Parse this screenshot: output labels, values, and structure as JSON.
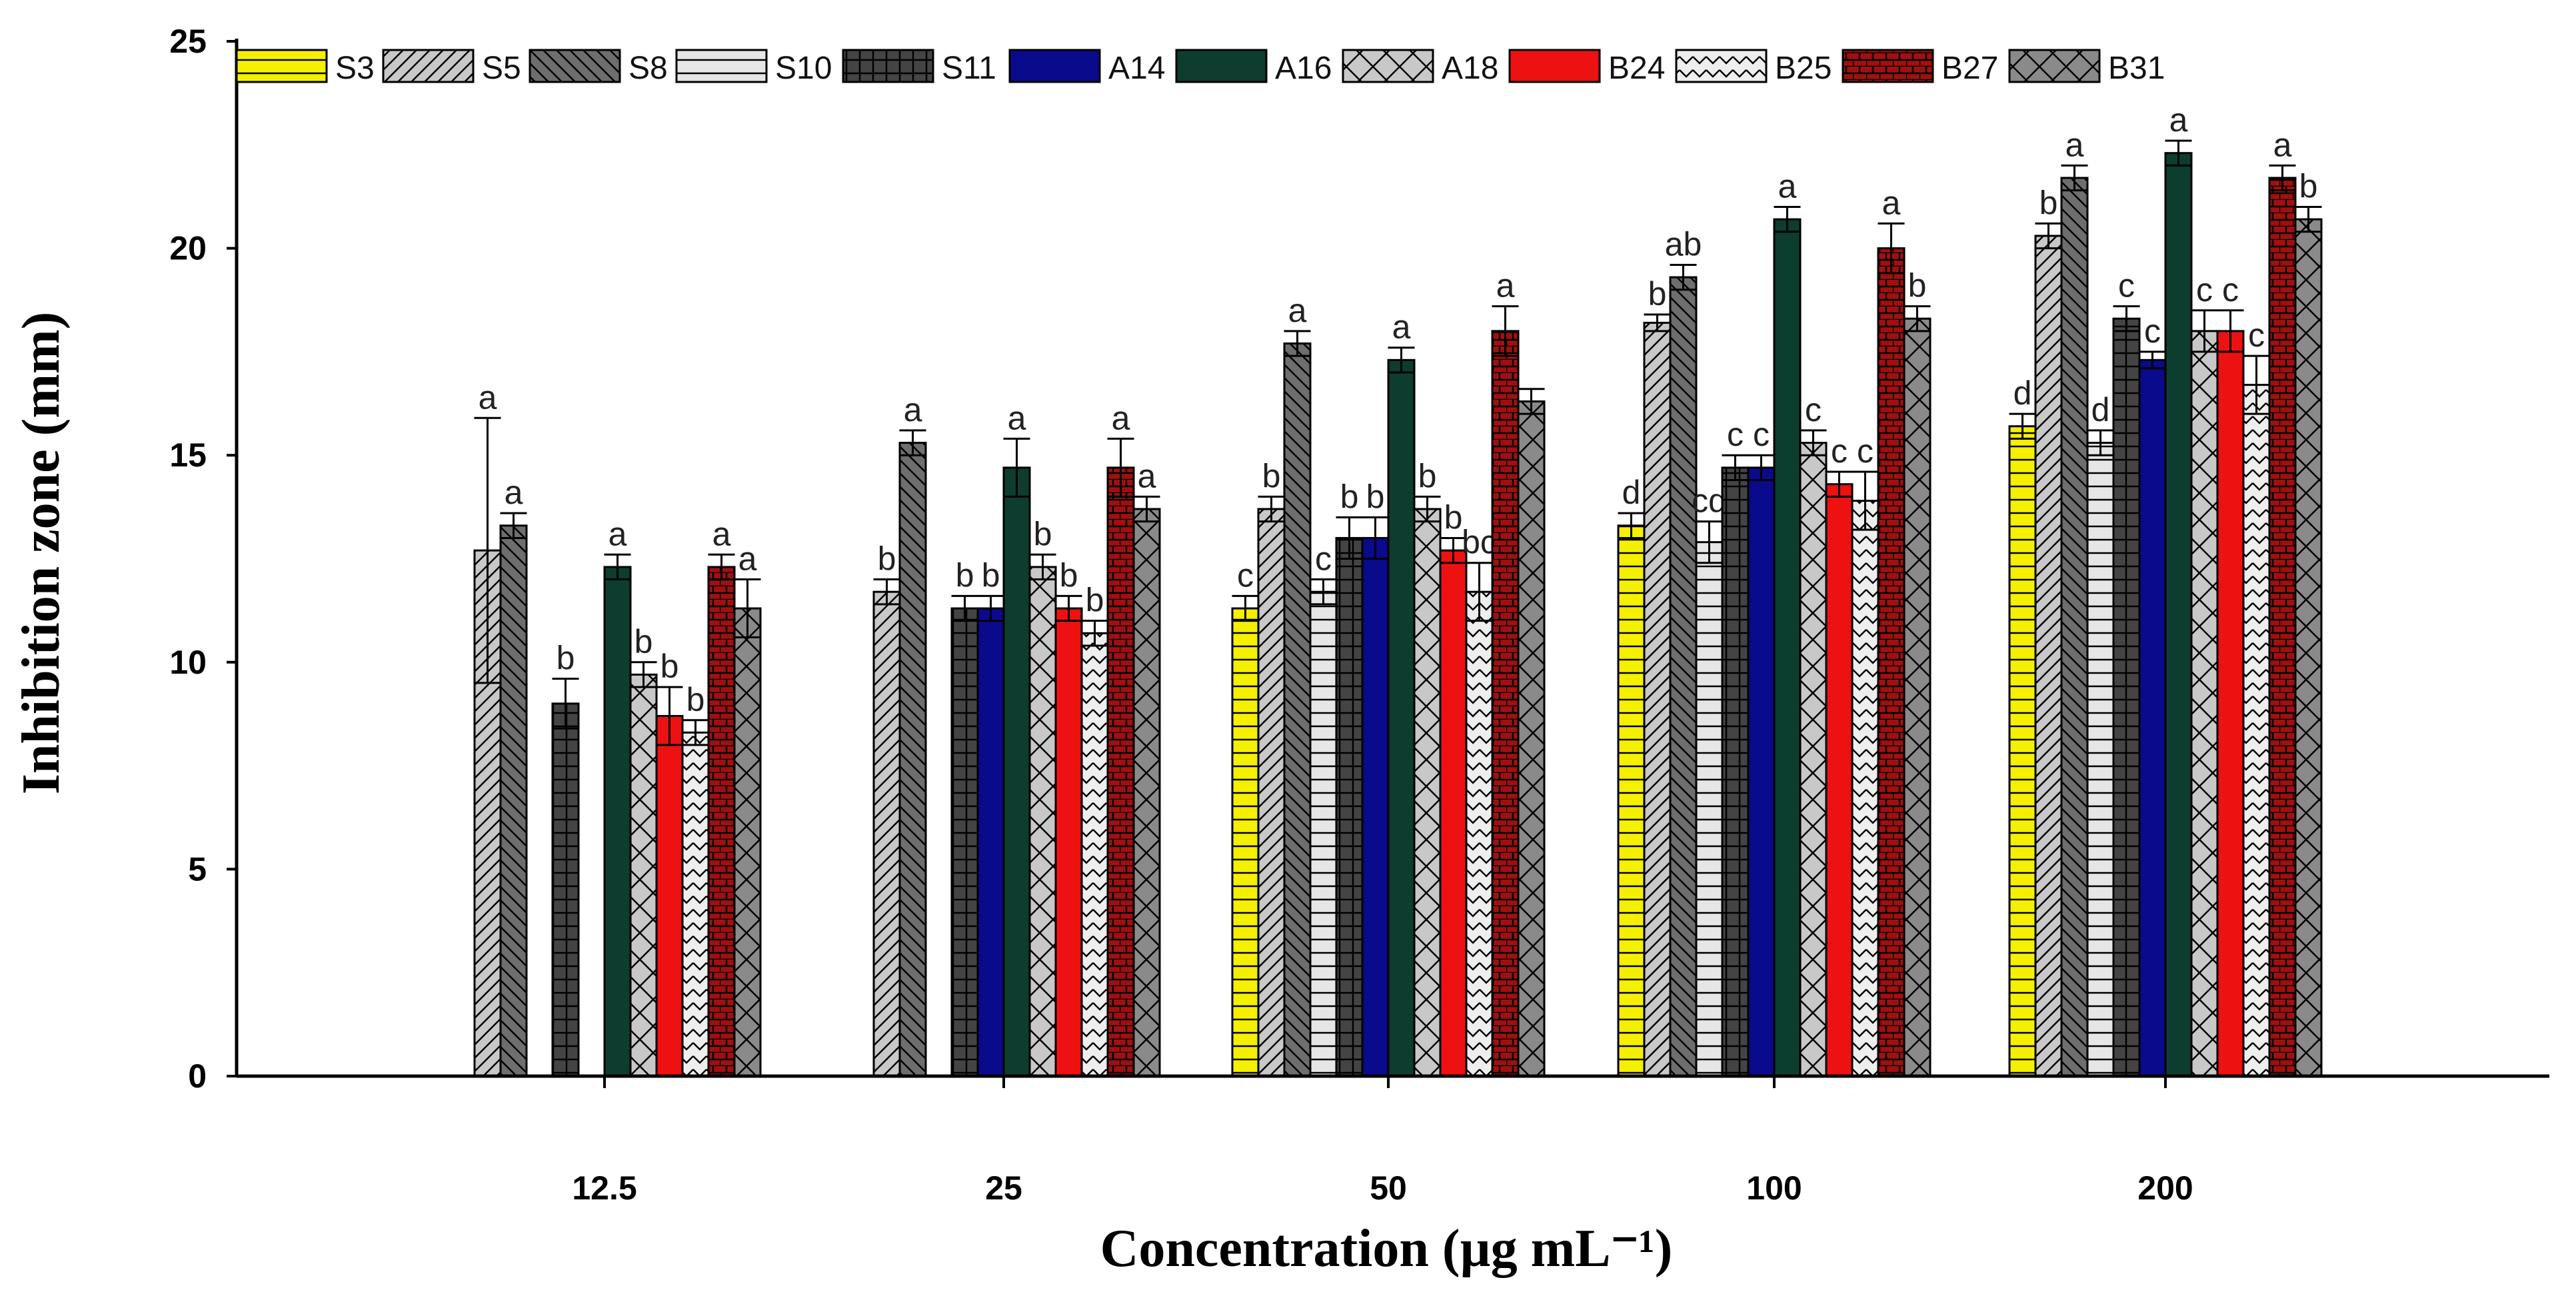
{
  "chart_data": {
    "type": "bar",
    "title": "",
    "xlabel": "Concentration (µg mL⁻¹)",
    "ylabel": "Inhibition zone (mm)",
    "ylim": [
      0,
      25
    ],
    "yticks": [
      "0",
      "5",
      "10",
      "15",
      "20",
      "25"
    ],
    "grid": false,
    "legend_position": "top",
    "categories": [
      "12.5",
      "25",
      "50",
      "100",
      "200"
    ],
    "series": [
      {
        "name": "S3",
        "color": "#f5f000",
        "pattern": "hlines",
        "values": [
          null,
          null,
          11.3,
          13.3,
          15.7
        ],
        "errors": [
          null,
          null,
          0.3,
          0.3,
          0.3
        ],
        "letters": [
          "",
          "",
          "c",
          "d",
          "d"
        ]
      },
      {
        "name": "S5",
        "color": "#c8c8c8",
        "pattern": "fdiag",
        "values": [
          12.7,
          11.7,
          13.7,
          18.2,
          20.3
        ],
        "errors": [
          3.2,
          0.3,
          0.3,
          0.2,
          0.3
        ],
        "letters": [
          "a",
          "b",
          "b",
          "b",
          "b"
        ]
      },
      {
        "name": "S8",
        "color": "#6e6e6e",
        "pattern": "bdiag",
        "values": [
          13.3,
          15.3,
          17.7,
          19.3,
          21.7
        ],
        "errors": [
          0.3,
          0.3,
          0.3,
          0.3,
          0.3
        ],
        "letters": [
          "a",
          "a",
          "a",
          "ab",
          "a"
        ]
      },
      {
        "name": "S10",
        "color": "#e6e6e6",
        "pattern": "hlines",
        "values": [
          null,
          null,
          11.7,
          12.9,
          15.3
        ],
        "errors": [
          null,
          null,
          0.3,
          0.5,
          0.3
        ],
        "letters": [
          "",
          "",
          "c",
          "cd",
          "d"
        ]
      },
      {
        "name": "S11",
        "color": "#444444",
        "pattern": "grid",
        "values": [
          9.0,
          11.3,
          13.0,
          14.7,
          18.3
        ],
        "errors": [
          0.6,
          0.3,
          0.5,
          0.3,
          0.3
        ],
        "letters": [
          "b",
          "b",
          "b",
          "c",
          "c"
        ]
      },
      {
        "name": "A14",
        "color": "#0a0a8c",
        "pattern": "solid",
        "values": [
          null,
          11.3,
          13.0,
          14.7,
          17.3
        ],
        "errors": [
          null,
          0.3,
          0.5,
          0.3,
          0.2
        ],
        "letters": [
          "",
          "b",
          "b",
          "c",
          "c"
        ]
      },
      {
        "name": "A16",
        "color": "#0d3d2e",
        "pattern": "solid",
        "values": [
          12.3,
          14.7,
          17.3,
          20.7,
          22.3
        ],
        "errors": [
          0.3,
          0.7,
          0.3,
          0.3,
          0.3
        ],
        "letters": [
          "a",
          "a",
          "a",
          "a",
          "a"
        ]
      },
      {
        "name": "A18",
        "color": "#c8c8c8",
        "pattern": "cross",
        "values": [
          9.7,
          12.3,
          13.7,
          15.3,
          18.0
        ],
        "errors": [
          0.3,
          0.3,
          0.3,
          0.3,
          0.5
        ],
        "letters": [
          "b",
          "b",
          "b",
          "c",
          "c"
        ]
      },
      {
        "name": "B24",
        "color": "#ee1111",
        "pattern": "solid",
        "values": [
          8.7,
          11.3,
          12.7,
          14.3,
          18.0
        ],
        "errors": [
          0.7,
          0.3,
          0.3,
          0.3,
          0.5
        ],
        "letters": [
          "b",
          "b",
          "b",
          "c",
          "c"
        ]
      },
      {
        "name": "B25",
        "color": "#eeeeee",
        "pattern": "zigzag",
        "values": [
          8.3,
          10.7,
          11.7,
          13.9,
          16.7
        ],
        "errors": [
          0.3,
          0.3,
          0.7,
          0.7,
          0.7
        ],
        "letters": [
          "b",
          "b",
          "bc",
          "c",
          "c"
        ]
      },
      {
        "name": "B27",
        "color": "#a01010",
        "pattern": "brick",
        "values": [
          12.3,
          14.7,
          18.0,
          20.0,
          21.7
        ],
        "errors": [
          0.3,
          0.7,
          0.6,
          0.6,
          0.3
        ],
        "letters": [
          "a",
          "a",
          "a",
          "a",
          "a"
        ]
      },
      {
        "name": "B31",
        "color": "#8a8a8a",
        "pattern": "cross",
        "values": [
          11.3,
          13.7,
          16.3,
          18.3,
          20.7
        ],
        "errors": [
          0.7,
          0.3,
          0.3,
          0.3,
          0.3
        ],
        "letters": [
          "a",
          "a",
          "",
          "b",
          "b"
        ]
      }
    ]
  }
}
